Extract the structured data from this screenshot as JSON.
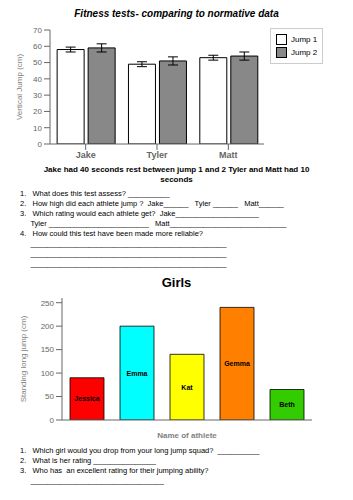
{
  "chart_data": [
    {
      "type": "bar",
      "title": "Fitness tests- comparing to normative data",
      "subtitle": "Jake had 40 seconds rest between jump 1 and 2 Tyler and Matt had 10 seconds",
      "categories": [
        "Jake",
        "Tyler",
        "Matt"
      ],
      "series": [
        {
          "name": "Jump 1",
          "color": "#ffffff",
          "values": [
            58,
            49,
            53
          ],
          "errors": [
            1.5,
            1.5,
            1.5
          ]
        },
        {
          "name": "Jump 2",
          "color": "#888888",
          "values": [
            59,
            51,
            54
          ],
          "errors": [
            2.5,
            2.5,
            2.5
          ]
        }
      ],
      "ylabel": "Vertical Jump (cm)",
      "ylim": [
        0,
        70
      ],
      "yticks": [
        0,
        10,
        20,
        30,
        40,
        50,
        60,
        70
      ],
      "legend": "right",
      "annotations": [
        "1.   What does this test assess? __________",
        "2.   How high did each athlete jump ?  Jake______   Tyler ______   Matt______",
        "3.   Which rating would each athlete get?  Jake____________________",
        "     Tyler ________________________   Matt____________________________",
        "4.   How could this test have been made more reliable?",
        "     _______________________________________________",
        "     _______________________________________________",
        "     _______________________________________________"
      ]
    },
    {
      "type": "bar",
      "title": "Girls",
      "categories": [
        "Jessica",
        "Emma",
        "Kat",
        "Gemma",
        "Beth"
      ],
      "values": [
        90,
        200,
        140,
        240,
        65
      ],
      "colors": [
        "#ff0000",
        "#00ffff",
        "#ffff00",
        "#ff8000",
        "#33cc00"
      ],
      "xlabel": "Name of athlete",
      "ylabel": "Standing long jump (cm)",
      "ylim": [
        0,
        260
      ],
      "yticks": [
        0,
        50,
        100,
        150,
        200,
        250
      ],
      "tick_labels": "y",
      "annotations": [
        "1.   Which girl would you drop from your long jump squad?  __________",
        "2.   What is her rating _______________",
        "3.   Who has  an excellent rating for their jumping ability?",
        "     ________________________________"
      ]
    }
  ]
}
